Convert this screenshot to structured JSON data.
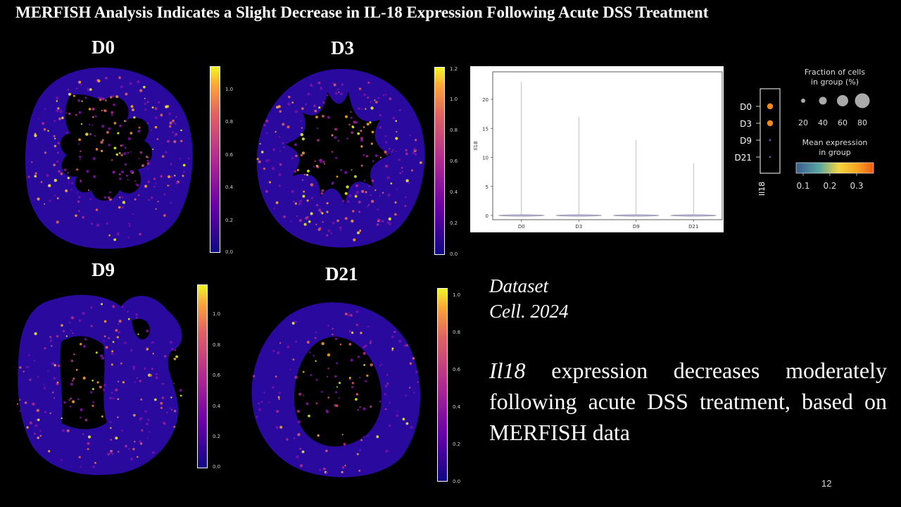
{
  "slide": {
    "title": "MERFISH Analysis Indicates a Slight Decrease in IL-18 Expression Following Acute DSS Treatment",
    "slide_number": "12",
    "dataset_line1": "Dataset",
    "dataset_line2": "Cell. 2024",
    "summary_gene": "Il18",
    "summary_text": " expression decreases moderately following acute DSS treatment, based on MERFISH data"
  },
  "spatial_panels": [
    {
      "label": "D0",
      "colorbar_max": 1.1,
      "ticks": [
        "1.0",
        "0.8",
        "0.6",
        "0.4",
        "0.2",
        "0.0"
      ]
    },
    {
      "label": "D3",
      "colorbar_max": 1.2,
      "ticks": [
        "1.2",
        "1.0",
        "0.8",
        "0.6",
        "0.4",
        "0.2",
        "0.0"
      ]
    },
    {
      "label": "D9",
      "colorbar_max": 1.15,
      "ticks": [
        "1.0",
        "0.8",
        "0.6",
        "0.4",
        "0.2",
        "0.0"
      ]
    },
    {
      "label": "D21",
      "colorbar_max": 1.03,
      "ticks": [
        "1.0",
        "0.8",
        "0.6",
        "0.4",
        "0.2",
        "0.0"
      ]
    }
  ],
  "colors": {
    "background": "#000000",
    "tissue_base": "#2a0a9e",
    "plasma_low": "#0d0887",
    "plasma_mid": "#cc4778",
    "plasma_high": "#f0f921"
  },
  "chart_data": [
    {
      "type": "violin",
      "categories": [
        "D0",
        "D3",
        "D9",
        "D21"
      ],
      "ylabel": "Il18",
      "ylim": [
        0,
        24
      ],
      "yticks": [
        0,
        5,
        10,
        15,
        20
      ],
      "max_values": [
        23,
        17,
        13,
        9
      ],
      "median_values": [
        0,
        0,
        0,
        0
      ]
    },
    {
      "type": "dotplot",
      "groups": [
        "D0",
        "D3",
        "D9",
        "D21"
      ],
      "gene": "Il18",
      "fraction_in_group_pct": [
        8,
        8,
        1,
        1
      ],
      "mean_expression": [
        0.33,
        0.33,
        0.1,
        0.1
      ],
      "size_legend_title": "Fraction of cells in group (%)",
      "size_legend_title_line1": "Fraction of cells",
      "size_legend_title_line2": "in group (%)",
      "size_legend_values": [
        "20",
        "40",
        "60",
        "80"
      ],
      "color_legend_title_line1": "Mean expression",
      "color_legend_title_line2": "in group",
      "color_legend_ticks": [
        "0.1",
        "0.2",
        "0.3"
      ]
    }
  ]
}
